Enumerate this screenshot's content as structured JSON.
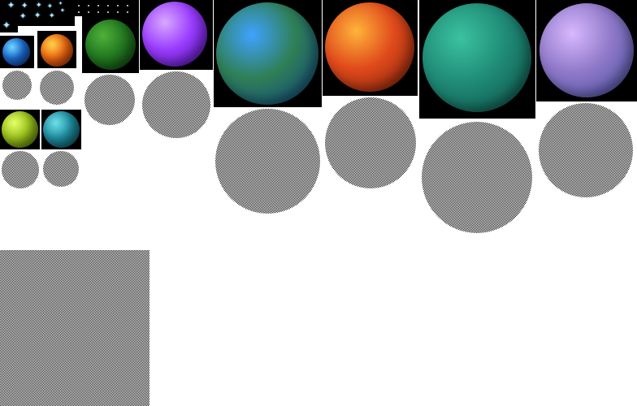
{
  "sprites": [
    {
      "id": "stars",
      "kind": "starfield"
    },
    {
      "id": "small-blue-planet",
      "colors": [
        "#6fd6ff",
        "#1f6fd8",
        "#0a2b6e"
      ]
    },
    {
      "id": "small-orange-swirl-planet",
      "colors": [
        "#ffd24a",
        "#f06a12",
        "#8a1e06"
      ]
    },
    {
      "id": "green-moss-planet",
      "colors": [
        "#4fb03a",
        "#237a20",
        "#0b3b0c"
      ]
    },
    {
      "id": "purple-crystal-planet",
      "colors": [
        "#d8a8ff",
        "#9a3cff",
        "#4a0e9e"
      ]
    },
    {
      "id": "earthlike-planet",
      "colors": [
        "#3fa2ff",
        "#2f7f55",
        "#0d3f88"
      ]
    },
    {
      "id": "lava-planet",
      "colors": [
        "#ffb43a",
        "#e04a1c",
        "#7a1e08"
      ]
    },
    {
      "id": "teal-planet",
      "colors": [
        "#3bc2a0",
        "#1f8a76",
        "#0b4a42"
      ]
    },
    {
      "id": "lavender-planet",
      "colors": [
        "#d8b8ff",
        "#8f78c8",
        "#3f4c9a"
      ]
    },
    {
      "id": "yellow-green-planet",
      "colors": [
        "#e4ff6a",
        "#9bc21a",
        "#3f5a06"
      ]
    },
    {
      "id": "cyan-noise-planet",
      "colors": [
        "#6ee0e8",
        "#1f8ea0",
        "#0a3f4a"
      ]
    }
  ]
}
